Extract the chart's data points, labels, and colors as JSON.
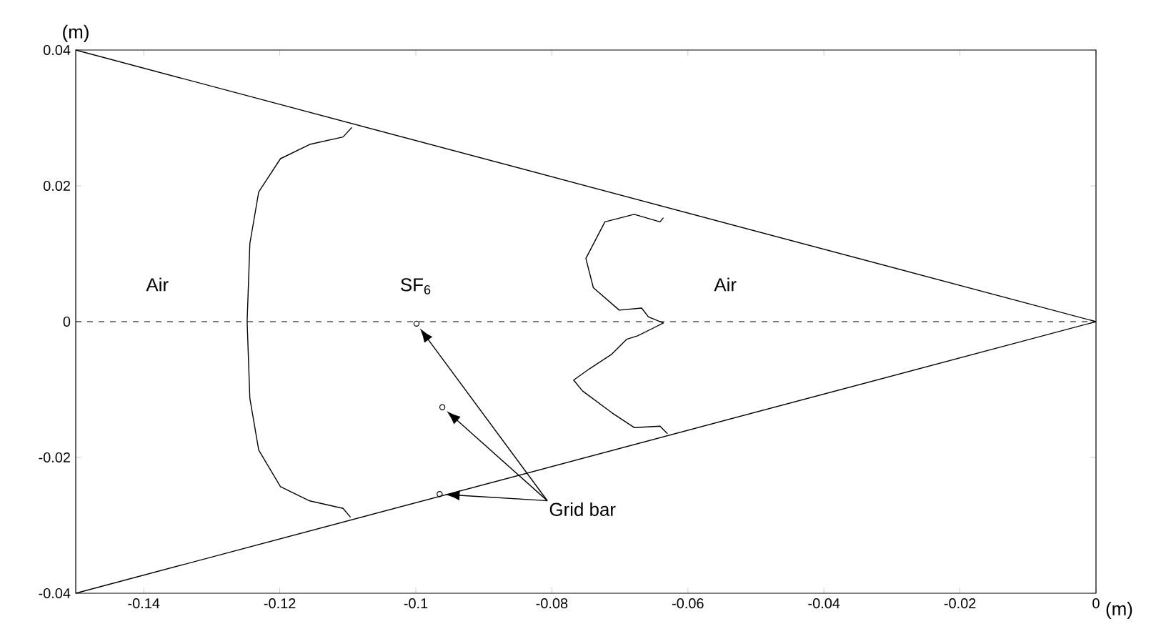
{
  "chart_data": {
    "type": "line",
    "xlabel": "(m)",
    "ylabel": "(m)",
    "xlim": [
      -0.15,
      0
    ],
    "ylim": [
      -0.04,
      0.04
    ],
    "xticks": [
      -0.14,
      -0.12,
      -0.1,
      -0.08,
      -0.06,
      -0.04,
      -0.02,
      0
    ],
    "yticks": [
      -0.04,
      -0.02,
      0,
      0.02,
      0.04
    ],
    "grid": false,
    "marker": "none",
    "line_style": "solid",
    "ref_lines": [
      {
        "axis": "y",
        "value": 0,
        "line_style": "dashed",
        "color": "#000000"
      }
    ],
    "annotations": [
      "Air",
      "SF$_{6}$",
      "Air",
      "Grid bar"
    ],
    "series": [
      {
        "color": "#000000",
        "x": [
          -0.15,
          0
        ],
        "values": [
          0.04,
          0
        ]
      },
      {
        "color": "#000000",
        "x": [
          -0.15,
          0
        ],
        "values": [
          -0.04,
          0
        ]
      },
      {
        "color": "#000000",
        "x": [
          -0.1094,
          -0.1107,
          -0.1156,
          -0.1199,
          -0.1231,
          -0.1244,
          -0.1248,
          -0.1244,
          -0.1231,
          -0.1199,
          -0.1156,
          -0.1107,
          -0.1096
        ],
        "values": [
          0.0286,
          0.0272,
          0.0261,
          0.024,
          0.0191,
          0.0115,
          0,
          -0.0113,
          -0.0189,
          -0.0243,
          -0.0264,
          -0.0275,
          -0.0288
        ]
      },
      {
        "color": "#000000",
        "x": [
          -0.0636,
          -0.0641,
          -0.0679,
          -0.0722,
          -0.075,
          -0.0739,
          -0.0701,
          -0.0668,
          -0.0658,
          -0.0636,
          -0.0652,
          -0.0674,
          -0.069,
          -0.0712,
          -0.0744,
          -0.0768,
          -0.0755,
          -0.0712,
          -0.0679,
          -0.0641,
          -0.063
        ],
        "values": [
          0.0153,
          0.0147,
          0.0158,
          0.0147,
          0.0093,
          0.005,
          0.0017,
          0.002,
          0.0007,
          -0.0002,
          -0.001,
          -0.0021,
          -0.0026,
          -0.0048,
          -0.0069,
          -0.0086,
          -0.0102,
          -0.0134,
          -0.0156,
          -0.0154,
          -0.0165
        ]
      },
      {
        "type": "scatter",
        "color": "#000000",
        "marker": "circle",
        "x": [
          -0.0999,
          -0.0961,
          -0.0965
        ],
        "values": [
          -0.0003,
          -0.0126,
          -0.0254
        ]
      }
    ]
  }
}
